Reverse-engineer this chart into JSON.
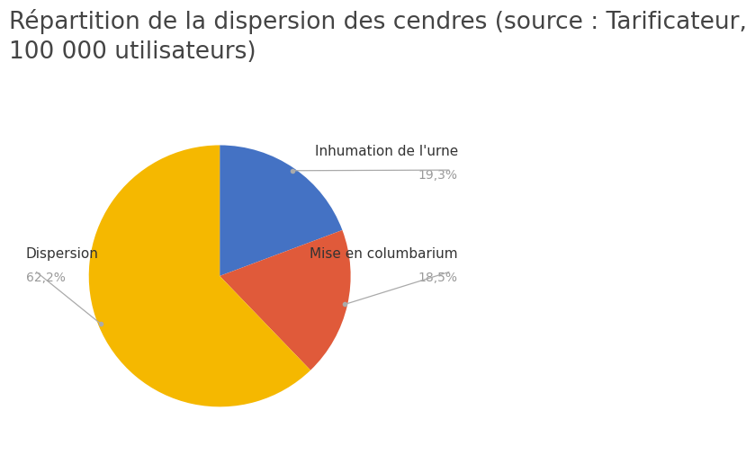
{
  "title": "Répartition de la dispersion des cendres (source : Tarificateur,\n100 000 utilisateurs)",
  "slices": [
    {
      "label": "Inhumation de l'urne",
      "value": 19.3,
      "color": "#4472C4",
      "pct": "19,3%"
    },
    {
      "label": "Mise en columbarium",
      "value": 18.5,
      "color": "#E05A3A",
      "pct": "18,5%"
    },
    {
      "label": "Dispersion",
      "value": 62.2,
      "color": "#F5B800",
      "pct": "62,2%"
    }
  ],
  "background_color": "#FFFFFF",
  "title_fontsize": 19,
  "label_fontsize": 11,
  "pct_fontsize": 10,
  "label_color": "#333333",
  "pct_color": "#999999",
  "line_color": "#aaaaaa",
  "dot_color": "#aaaaaa"
}
